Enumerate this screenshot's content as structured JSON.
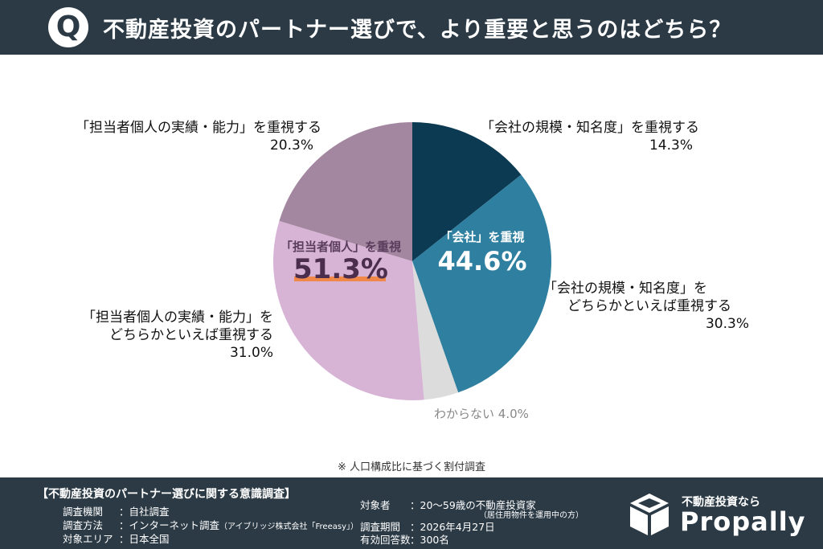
{
  "header": {
    "badge": "Q",
    "question": "不動産投資のパートナー選びで、より重要と思うのはどちら？"
  },
  "chart_data": {
    "type": "pie",
    "start_angle_deg": 0,
    "direction": "clockwise",
    "slices": [
      {
        "label": "「会社の規模・知名度」を重視する",
        "value": 14.3,
        "color": "#0b3a52"
      },
      {
        "label": "「会社の規模・知名度」をどちらかといえば重視する",
        "value": 30.3,
        "color": "#2e7fa0"
      },
      {
        "label": "わからない",
        "value": 4.0,
        "color": "#dcdcdc"
      },
      {
        "label": "「担当者個人の実績・能力」をどちらかといえば重視する",
        "value": 31.0,
        "color": "#d7b4d6"
      },
      {
        "label": "「担当者個人の実績・能力」を重視する",
        "value": 20.3,
        "color": "#a3869f"
      }
    ],
    "groups": [
      {
        "label": "「会社」を重視",
        "value": "44.6%"
      },
      {
        "label": "「担当者個人」を重視",
        "value": "51.3%"
      }
    ],
    "slice_labels": [
      {
        "line1": "「会社の規模・知名度」を重視する",
        "line2": "",
        "pct": "14.3%"
      },
      {
        "line1": "「会社の規模・知名度」を",
        "line2": "どちらかといえば重視する",
        "pct": "30.3%"
      },
      {
        "line1": "わからない",
        "line2": "",
        "pct": "4.0%"
      },
      {
        "line1": "「担当者個人の実績・能力」を",
        "line2": "どちらかといえば重視する",
        "pct": "31.0%"
      },
      {
        "line1": "「担当者個人の実績・能力」を重視する",
        "line2": "",
        "pct": "20.3%"
      }
    ]
  },
  "note": "※ 人口構成比に基づく割付調査",
  "footer": {
    "title": "【不動産投資のパートナー選びに関する意識調査】",
    "left_rows": [
      {
        "key": "調査機関",
        "value": "：自社調査"
      },
      {
        "key": "調査方法",
        "value": "：インターネット調査",
        "sub": "（アイブリッジ株式会社「Freeasy」）"
      },
      {
        "key": "対象エリア",
        "value": "：日本全国"
      }
    ],
    "right_rows": [
      {
        "key": "対象者",
        "value": "：20〜59歳の不動産投資家",
        "sub": "（居住用物件を運用中の方）"
      },
      {
        "key": "調査期間",
        "value": "：2026年4月27日"
      },
      {
        "key": "有効回答数",
        "value": "：300名"
      }
    ]
  },
  "brand": {
    "tagline": "不動産投資なら",
    "name": "Propally"
  }
}
